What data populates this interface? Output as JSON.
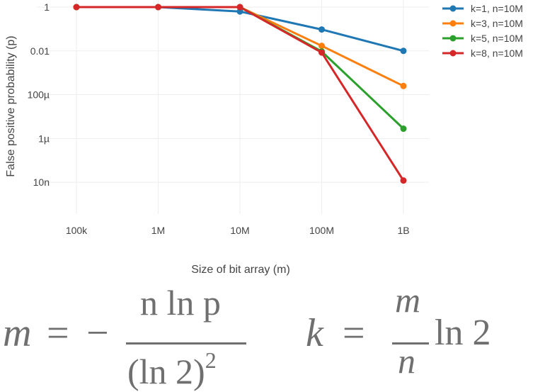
{
  "chart_data": {
    "type": "line",
    "xlabel": "Size of bit array (m)",
    "ylabel": "False positive probability (p)",
    "x_scale": "log",
    "y_scale": "log",
    "x": [
      100000,
      1000000,
      10000000,
      100000000,
      1000000000
    ],
    "x_tick_labels": [
      "100k",
      "1M",
      "10M",
      "100M",
      "1B"
    ],
    "y_ticks": [
      1,
      0.01,
      0.0001,
      1e-06,
      1e-08
    ],
    "y_tick_labels": [
      "1",
      "0.01",
      "100µ",
      "1µ",
      "10n"
    ],
    "xlim": [
      100000,
      1000000000
    ],
    "ylim": [
      1e-09,
      1
    ],
    "grid": true,
    "legend_position": "top-right",
    "series": [
      {
        "name": "k=1, n=10M",
        "color": "#1f77b4",
        "values": [
          1,
          1,
          0.63,
          0.095,
          0.01
        ]
      },
      {
        "name": "k=3, n=10M",
        "color": "#ff7f0e",
        "values": [
          1,
          1,
          1,
          0.017,
          0.00025
        ]
      },
      {
        "name": "k=5, n=10M",
        "color": "#2ca02c",
        "values": [
          1,
          1,
          1,
          0.0094,
          2.8e-06
        ]
      },
      {
        "name": "k=8, n=10M",
        "color": "#d62728",
        "values": [
          1,
          1,
          1,
          0.0084,
          1.2e-08
        ]
      }
    ]
  },
  "formulas": {
    "f1": {
      "lhs": "m",
      "eq": "=",
      "minus": "−",
      "num": "n ln p",
      "den": "(ln 2)",
      "den_exp": "2"
    },
    "f2": {
      "lhs": "k",
      "eq": "=",
      "num": "m",
      "den": "n",
      "tail": "ln 2"
    }
  }
}
